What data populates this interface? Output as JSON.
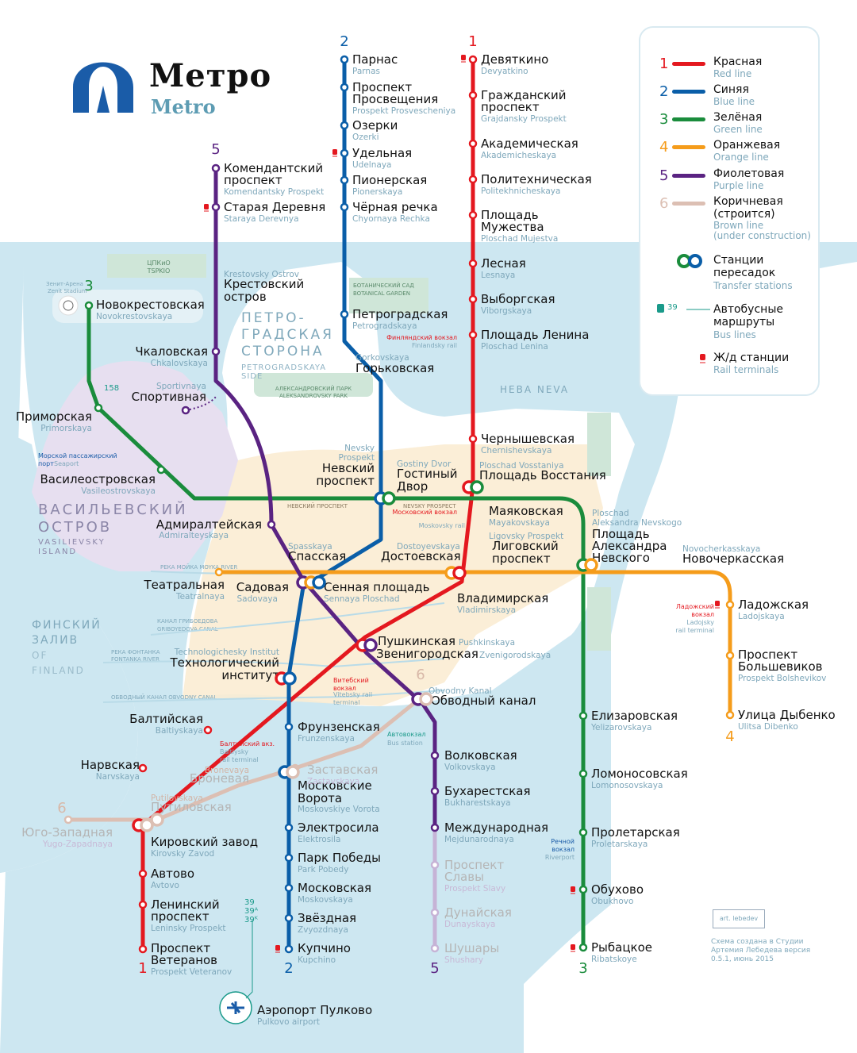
{
  "logo": {
    "title_ru": "Метро",
    "title_en": "Metro"
  },
  "legend": {
    "lines": [
      {
        "num": "1",
        "ru": "Красная",
        "en": "Red line",
        "color": "#e4181f"
      },
      {
        "num": "2",
        "ru": "Синяя",
        "en": "Blue line",
        "color": "#0a5ea8"
      },
      {
        "num": "3",
        "ru": "Зелёная",
        "en": "Green line",
        "color": "#1a8c3c"
      },
      {
        "num": "4",
        "ru": "Оранжевая",
        "en": "Orange line",
        "color": "#f59c1b"
      },
      {
        "num": "5",
        "ru": "Фиолетовая",
        "en": "Purple line",
        "color": "#5a2382"
      },
      {
        "num": "6",
        "ru": "Коричневая (строится)",
        "en": "Brown line (under construction)",
        "color": "#dcbfb3"
      }
    ],
    "transfer": {
      "ru": "Станции пересадок",
      "en": "Transfer stations"
    },
    "bus": {
      "ru": "Автобусные маршруты",
      "en": "Bus lines",
      "sample": "39"
    },
    "rail": {
      "ru": "Ж/д станции",
      "en": "Rail terminals"
    }
  },
  "colors": {
    "water": "#cde7f1",
    "land_beige": "#fbecd3",
    "park": "#cfe6d8",
    "vasil": "#e7dff0",
    "en_text": "#7fa8bb",
    "rail": "#e4181f"
  },
  "line_numbers": {
    "red": "1",
    "blue": "2",
    "green": "3",
    "orange": "4",
    "purple": "5",
    "brown": "6"
  },
  "stations": {
    "red": [
      {
        "ru": "Девяткино",
        "en": "Devyatkino"
      },
      {
        "ru": "Гражданский проспект",
        "en": "Grajdansky Prospekt"
      },
      {
        "ru": "Академическая",
        "en": "Akademicheskaya"
      },
      {
        "ru": "Политехническая",
        "en": "Politekhnicheskaya"
      },
      {
        "ru": "Площадь Мужества",
        "en": "Ploschad Mujestva"
      },
      {
        "ru": "Лесная",
        "en": "Lesnaya"
      },
      {
        "ru": "Выборгская",
        "en": "Viborgskaya"
      },
      {
        "ru": "Площадь Ленина",
        "en": "Ploschad Lenina"
      },
      {
        "ru": "Чернышевская",
        "en": "Chernishevskaya"
      },
      {
        "ru": "Площадь Восстания",
        "en": "Ploschad Vosstaniya"
      },
      {
        "ru": "Владимирская",
        "en": "Vladimirskaya"
      },
      {
        "ru": "Пушкинская",
        "en": "Pushkinskaya"
      },
      {
        "ru": "Технологический институт",
        "en": "Technologichesky Institut"
      },
      {
        "ru": "Балтийская",
        "en": "Baltiyskaya"
      },
      {
        "ru": "Нарвская",
        "en": "Narvskaya"
      },
      {
        "ru": "Кировский завод",
        "en": "Kirovsky Zavod"
      },
      {
        "ru": "Автово",
        "en": "Avtovo"
      },
      {
        "ru": "Ленинский проспект",
        "en": "Leninsky Prospekt"
      },
      {
        "ru": "Проспект Ветеранов",
        "en": "Prospekt Veteranov"
      }
    ],
    "blue": [
      {
        "ru": "Парнас",
        "en": "Parnas"
      },
      {
        "ru": "Проспект Просвещения",
        "en": "Prospekt Prosvescheniya"
      },
      {
        "ru": "Озерки",
        "en": "Ozerki"
      },
      {
        "ru": "Удельная",
        "en": "Udelnaya"
      },
      {
        "ru": "Пионерская",
        "en": "Pionerskaya"
      },
      {
        "ru": "Чёрная речка",
        "en": "Chyornaya Rechka"
      },
      {
        "ru": "Петроградская",
        "en": "Petrogradskaya"
      },
      {
        "ru": "Горьковская",
        "en": "Gorkovskaya"
      },
      {
        "ru": "Невский проспект",
        "en": "Nevsky Prospekt"
      },
      {
        "ru": "Сенная площадь",
        "en": "Sennaya Ploschad"
      },
      {
        "ru": "Фрунзенская",
        "en": "Frunzenskaya"
      },
      {
        "ru": "Московские Ворота",
        "en": "Moskovskiye Vorota"
      },
      {
        "ru": "Электросила",
        "en": "Elektrosila"
      },
      {
        "ru": "Парк Победы",
        "en": "Park Pobedy"
      },
      {
        "ru": "Московская",
        "en": "Moskovskaya"
      },
      {
        "ru": "Звёздная",
        "en": "Zvyozdnaya"
      },
      {
        "ru": "Купчино",
        "en": "Kupchino"
      }
    ],
    "green": [
      {
        "ru": "Новокрестовская",
        "en": "Novokrestovskaya"
      },
      {
        "ru": "Приморская",
        "en": "Primorskaya"
      },
      {
        "ru": "Василеостровская",
        "en": "Vasileostrovskaya"
      },
      {
        "ru": "Гостиный Двор",
        "en": "Gostiny Dvor"
      },
      {
        "ru": "Маяковская",
        "en": "Mayakovskaya"
      },
      {
        "ru": "Площадь Александра Невского",
        "en": "Ploschad Aleksandra Nevskogo"
      },
      {
        "ru": "Елизаровская",
        "en": "Yelizarovskaya"
      },
      {
        "ru": "Ломоносовская",
        "en": "Lomonosovskaya"
      },
      {
        "ru": "Пролетарская",
        "en": "Proletarskaya"
      },
      {
        "ru": "Обухово",
        "en": "Obukhovo"
      },
      {
        "ru": "Рыбацкое",
        "en": "Ribatskoye"
      }
    ],
    "orange": [
      {
        "ru": "Театральная",
        "en": "Teatralnaya"
      },
      {
        "ru": "Спасская",
        "en": "Spasskaya"
      },
      {
        "ru": "Достоевская",
        "en": "Dostoyevskaya"
      },
      {
        "ru": "Лиговский проспект",
        "en": "Ligovsky Prospekt"
      },
      {
        "ru": "Новочеркасская",
        "en": "Novocherkasskaya"
      },
      {
        "ru": "Ладожская",
        "en": "Ladojskaya"
      },
      {
        "ru": "Проспект Большевиков",
        "en": "Prospekt Bolshevikov"
      },
      {
        "ru": "Улица Дыбенко",
        "en": "Ulitsa Dibenko"
      }
    ],
    "purple": [
      {
        "ru": "Комендантский проспект",
        "en": "Komendantsky Prospekt"
      },
      {
        "ru": "Старая Деревня",
        "en": "Staraya Derevnya"
      },
      {
        "ru": "Крестовский остров",
        "en": "Krestovsky Ostrov"
      },
      {
        "ru": "Чкаловская",
        "en": "Chkalovskaya"
      },
      {
        "ru": "Спортивная",
        "en": "Sportivnaya"
      },
      {
        "ru": "Адмиралтейская",
        "en": "Admiralteyskaya"
      },
      {
        "ru": "Садовая",
        "en": "Sadovaya"
      },
      {
        "ru": "Звенигородская",
        "en": "Zvenigorodskaya"
      },
      {
        "ru": "Обводный канал",
        "en": "Obvodny Kanal"
      },
      {
        "ru": "Волковская",
        "en": "Volkovskaya"
      },
      {
        "ru": "Бухарестская",
        "en": "Bukharestskaya"
      },
      {
        "ru": "Международная",
        "en": "Mejdunarodnaya"
      },
      {
        "ru": "Проспект Славы",
        "en": "Prospekt Slavy"
      },
      {
        "ru": "Дунайская",
        "en": "Dunayskaya"
      },
      {
        "ru": "Шушары",
        "en": "Shushary"
      }
    ],
    "brown": [
      {
        "ru": "Заставская",
        "en": "Zastavskaya"
      },
      {
        "ru": "Броневая",
        "en": "Bronevaya"
      },
      {
        "ru": "Путиловская",
        "en": "Putilovskaya"
      },
      {
        "ru": "Юго-Западная",
        "en": "Yugo-Zapadnaya"
      }
    ]
  },
  "areas": {
    "petrograd_ru": "ПЕТРО- ГРАДСКАЯ СТОРОНА",
    "petrograd_en": "PETROGRADSKAYA SIDE",
    "vasil_ru": "ВАСИЛЬЕВСКИЙ ОСТРОВ",
    "vasil_en": "VASILIEVSKY ISLAND",
    "gulf_ru": "ФИНСКИЙ ЗАЛИВ",
    "gulf_en": "GULF OF FINLAND",
    "neva": "НЕВА NEVA",
    "tspkio": "ЦПКиО TSPKIO",
    "botanic": "БОТАНИЧЕСКИЙ САД BOTANICAL GARDEN",
    "aleks_park": "АЛЕКСАНДРОВСКИЙ ПАРК ALEKSANDROVSKY PARK",
    "nevsky_pr": "НЕВСКИЙ ПРОСПЕКТ",
    "nevsky_pr_en": "NEVSKY PROSPECT",
    "moika": "РЕКА МОЙКА MOYKA RIVER",
    "griboedov": "КАНАЛ ГРИБОЕДОВА GRIBOYEDOVA CANAL",
    "fontanka": "РЕКА ФОНТАНКА FONTANKA RIVER",
    "obvodny": "ОБВОДНЫЙ КАНАЛ OBVODNY CANAL"
  },
  "pois": {
    "finlandsky": "Финляндский вокзал Finlandsky rail terminal",
    "moskovsky": "Московский вокзал Moskovsky rail terminal",
    "vitebsky": "Витебский вокзал Vitebsky rail terminal",
    "baltiysky": "Балтийский вкз. Baltiysky rail terminal",
    "ladojsky": "Ладожский вокзал Ladojsky rail terminal",
    "seaport": "Морской пассажирский порт Seaport",
    "riverport": "Речной вокзал Riverport",
    "bus_station": "Автовокзал Bus station",
    "airport_ru": "Аэропорт Пулково",
    "airport_en": "Pulkovo airport",
    "stadium": "Зенит-Арена Zenit Stadium",
    "bus_158": "158",
    "bus_39": "39 39ᴬ 39ᴷ"
  },
  "credit": "Схема создана в Студии Артемия Лебедева версия 0.5.1, июнь 2015",
  "stamp": "art. lebedev"
}
